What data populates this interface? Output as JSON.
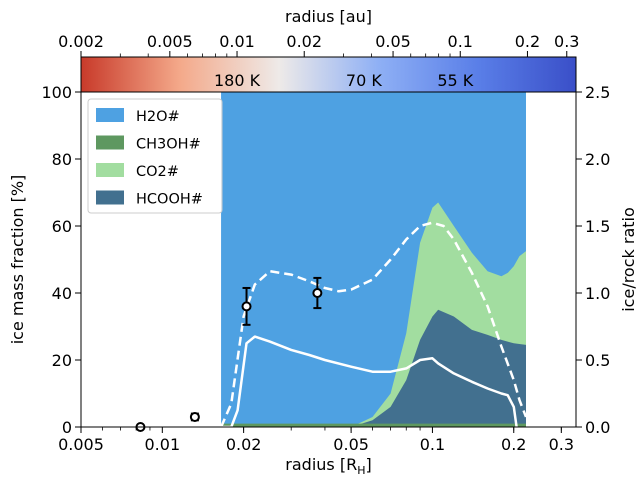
{
  "chart_data": {
    "type": "area",
    "xlabel_base": "radius [R",
    "xlabel_sub": "H",
    "xlabel_end": "]",
    "top_xlabel": "radius [au]",
    "ylabel": "ice mass fraction [%]",
    "ylabel_right": "ice/rock ratio",
    "x_scale": "log",
    "xlim": [
      0.005,
      0.34
    ],
    "ylim": [
      0,
      100
    ],
    "ylim_right": [
      0,
      2.5
    ],
    "x_ticks": [
      {
        "v": 0.005,
        "label": "0.005"
      },
      {
        "v": 0.01,
        "label": "0.01"
      },
      {
        "v": 0.02,
        "label": "0.02"
      },
      {
        "v": 0.05,
        "label": "0.05"
      },
      {
        "v": 0.1,
        "label": "0.1"
      },
      {
        "v": 0.2,
        "label": "0.2"
      },
      {
        "v": 0.3,
        "label": "0.3"
      }
    ],
    "y_ticks": [
      {
        "v": 0,
        "label": "0"
      },
      {
        "v": 20,
        "label": "20"
      },
      {
        "v": 40,
        "label": "40"
      },
      {
        "v": 60,
        "label": "60"
      },
      {
        "v": 80,
        "label": "80"
      },
      {
        "v": 100,
        "label": "100"
      }
    ],
    "y_ticks_right": [
      {
        "v": 0,
        "label": "0.0"
      },
      {
        "v": 0.5,
        "label": "0.5"
      },
      {
        "v": 1.0,
        "label": "1.0"
      },
      {
        "v": 1.5,
        "label": "1.5"
      },
      {
        "v": 2.0,
        "label": "2.0"
      },
      {
        "v": 2.5,
        "label": "2.5"
      }
    ],
    "top_ticks": [
      {
        "v": 0.002,
        "label": "0.002"
      },
      {
        "v": 0.005,
        "label": "0.005"
      },
      {
        "v": 0.01,
        "label": "0.01"
      },
      {
        "v": 0.02,
        "label": "0.02"
      },
      {
        "v": 0.05,
        "label": "0.05"
      },
      {
        "v": 0.1,
        "label": "0.1"
      },
      {
        "v": 0.2,
        "label": "0.2"
      },
      {
        "v": 0.3,
        "label": "0.3"
      }
    ],
    "top_xlim": [
      0.002,
      0.33
    ],
    "temperature_labels": [
      {
        "text": "180 K",
        "x_au": 0.01
      },
      {
        "text": "70 K",
        "x_au": 0.037
      },
      {
        "text": "55 K",
        "x_au": 0.095
      }
    ],
    "colorbar_colors": [
      "#c83a2a",
      "#f4a98a",
      "#eeeae8",
      "#8fb0f5",
      "#5a7fe8",
      "#3a4fc8"
    ],
    "legend": [
      {
        "label": "H2O#",
        "color": "#4ea1e2"
      },
      {
        "label": "CH3OH#",
        "color": "#5e9860"
      },
      {
        "label": "CO2#",
        "color": "#a2dda0"
      },
      {
        "label": "HCOOH#",
        "color": "#42708f"
      }
    ],
    "series": [
      {
        "name": "H2O#",
        "color": "#4ea1e2",
        "x": [
          0.0165,
          0.222
        ],
        "lower": [
          0,
          0
        ],
        "upper": [
          100,
          100
        ]
      },
      {
        "name": "CO2#",
        "color": "#a2dda0",
        "x": [
          0.0165,
          0.05,
          0.06,
          0.07,
          0.08,
          0.09,
          0.1,
          0.105,
          0.12,
          0.14,
          0.16,
          0.18,
          0.19,
          0.2,
          0.21,
          0.222
        ],
        "upper": [
          0,
          0,
          3,
          10,
          28,
          55,
          65.5,
          67,
          60,
          52,
          46.5,
          45,
          46,
          48,
          51,
          52.5
        ]
      },
      {
        "name": "HCOOH#",
        "color": "#42708f",
        "x": [
          0.0165,
          0.05,
          0.06,
          0.07,
          0.08,
          0.09,
          0.1,
          0.105,
          0.12,
          0.14,
          0.16,
          0.18,
          0.2,
          0.222
        ],
        "upper": [
          0,
          0,
          2,
          6,
          14,
          26,
          33,
          35,
          33,
          29,
          27.5,
          26,
          25,
          24.5
        ]
      },
      {
        "name": "CH3OH#",
        "color": "#5e9860",
        "x": [
          0.0165,
          0.222
        ],
        "upper": [
          1,
          1
        ]
      }
    ],
    "lines": [
      {
        "style": "solid",
        "color": "#ffffff",
        "x": [
          0.0165,
          0.018,
          0.019,
          0.0205,
          0.022,
          0.025,
          0.03,
          0.035,
          0.04,
          0.05,
          0.06,
          0.07,
          0.08,
          0.09,
          0.1,
          0.105,
          0.12,
          0.14,
          0.16,
          0.18,
          0.19,
          0.2,
          0.205
        ],
        "y": [
          0,
          0,
          5,
          25,
          27,
          25.5,
          23,
          21.5,
          20,
          18,
          16.5,
          16.5,
          17.5,
          20,
          20.5,
          19,
          16,
          13.5,
          11.5,
          10,
          9.5,
          6,
          0
        ]
      },
      {
        "style": "dashed",
        "color": "#ffffff",
        "x": [
          0.0165,
          0.018,
          0.02,
          0.022,
          0.025,
          0.03,
          0.035,
          0.04,
          0.045,
          0.05,
          0.06,
          0.07,
          0.08,
          0.09,
          0.1,
          0.11,
          0.12,
          0.14,
          0.16,
          0.18,
          0.2,
          0.21,
          0.222
        ],
        "y": [
          0,
          7,
          33,
          42.5,
          46.5,
          45.5,
          43.5,
          41.5,
          40.5,
          41,
          44,
          50,
          56,
          60,
          61,
          60,
          56,
          46,
          36,
          24,
          14,
          8,
          3
        ]
      }
    ],
    "points": [
      {
        "x": 0.0083,
        "y": 0,
        "err": 0
      },
      {
        "x": 0.0132,
        "y": 3,
        "err": 1
      },
      {
        "x": 0.0205,
        "y": 36,
        "err": 5.5
      },
      {
        "x": 0.0375,
        "y": 40,
        "err": 4.5
      }
    ]
  }
}
